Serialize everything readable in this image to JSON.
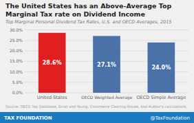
{
  "chart_data": {
    "type": "bar",
    "title": "The United States has an Above-Average Top Marginal Tax rate on Dividend Income",
    "subtitle": "Top Marginal Personal Dividend Tax Rates, U.S. and OECD Averages, 2015",
    "source": "Source: OECD Tax Database, Ernst and Young, Commerce Clearing House, and Author's calculations.",
    "annotations": [
      "TAX FOUNDATION",
      "@TaxFoundation"
    ],
    "categories": [
      "United States",
      "OECD Weighted Average",
      "OECD Simple Average"
    ],
    "values": [
      28.6,
      27.1,
      24.0
    ],
    "value_labels": [
      "28.6%",
      "27.1%",
      "24.0%"
    ],
    "data_labels": true,
    "colors": [
      "#e02020",
      "#4a72a8",
      "#4a72a8"
    ],
    "ylim": [
      0,
      30
    ],
    "yticks": [
      {
        "value": 0,
        "label": "0.0%"
      },
      {
        "value": 5,
        "label": "5.0%"
      },
      {
        "value": 10,
        "label": "10.0%"
      },
      {
        "value": 15,
        "label": "15.0%"
      },
      {
        "value": 20,
        "label": "20.0%"
      },
      {
        "value": 25,
        "label": "25.0%"
      },
      {
        "value": 30,
        "label": "30.0%"
      }
    ],
    "grid": true
  }
}
